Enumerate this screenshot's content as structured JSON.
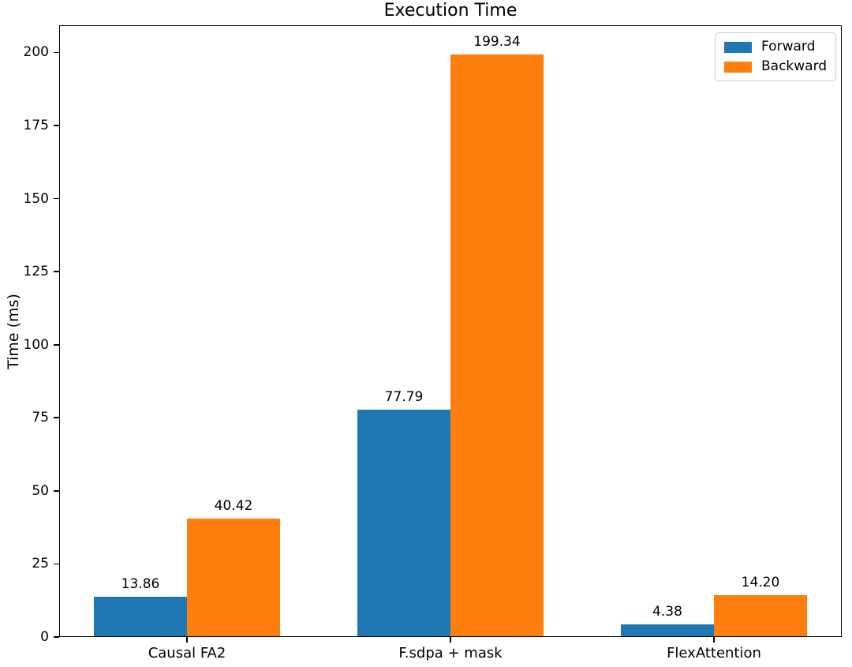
{
  "chart_data": {
    "type": "bar",
    "title": "Execution Time",
    "xlabel": "",
    "ylabel": "Time (ms)",
    "categories": [
      "Causal FA2",
      "F.sdpa + mask",
      "FlexAttention"
    ],
    "series": [
      {
        "name": "Forward",
        "color": "#1f77b4",
        "values": [
          13.86,
          77.79,
          4.38
        ],
        "bar_labels": [
          "13.86",
          "77.79",
          "4.38"
        ]
      },
      {
        "name": "Backward",
        "color": "#ff7f0e",
        "values": [
          40.42,
          199.34,
          14.2
        ],
        "bar_labels": [
          "40.42",
          "199.34",
          "14.20"
        ]
      }
    ],
    "yticks": [
      "0",
      "25",
      "50",
      "75",
      "100",
      "125",
      "150",
      "175",
      "200"
    ],
    "ytick_values": [
      0,
      25,
      50,
      75,
      100,
      125,
      150,
      175,
      200
    ],
    "ylim": [
      0,
      209.3
    ],
    "grid": false,
    "legend_position": "upper right"
  }
}
